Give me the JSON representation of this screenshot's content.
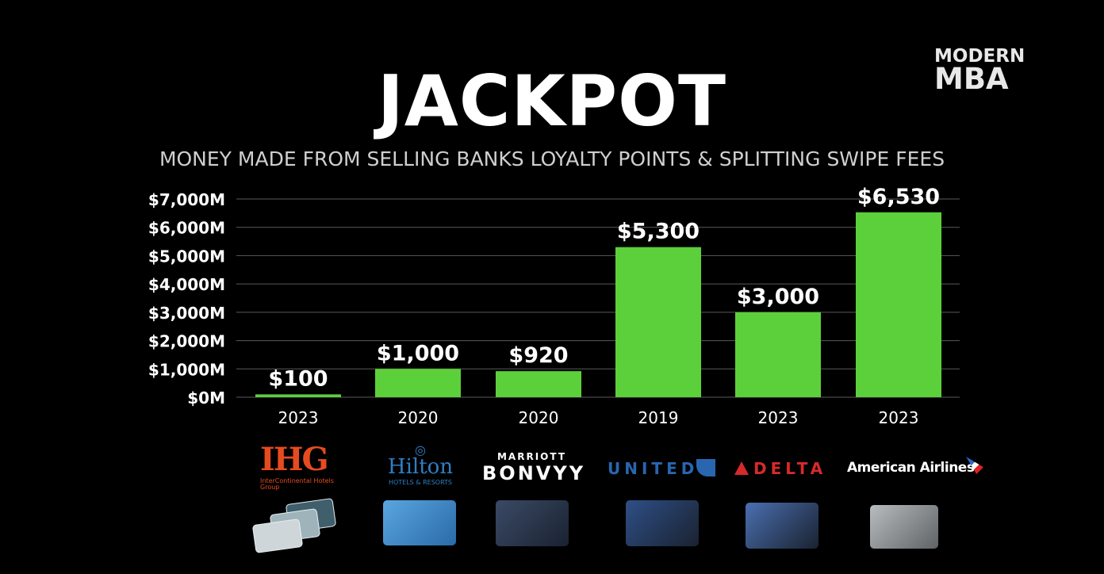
{
  "brand": {
    "line1": "MODERN",
    "line2": "MBA"
  },
  "chart_data": {
    "type": "bar",
    "title": "JACKPOT",
    "subtitle": "MONEY MADE FROM SELLING BANKS LOYALTY POINTS & SPLITTING SWIPE FEES",
    "categories": [
      "2023",
      "2020",
      "2020",
      "2019",
      "2023",
      "2023"
    ],
    "values": [
      100,
      1000,
      920,
      5300,
      3000,
      6530
    ],
    "data_labels": [
      "$100",
      "$1,000",
      "$920",
      "$5,300",
      "$3,000",
      "$6,530"
    ],
    "yticks": [
      0,
      1000,
      2000,
      3000,
      4000,
      5000,
      6000,
      7000
    ],
    "ytick_labels": [
      "$0M",
      "$1,000M",
      "$2,000M",
      "$3,000M",
      "$4,000M",
      "$5,000M",
      "$6,000M",
      "$7,000M"
    ],
    "ylim": [
      0,
      7000
    ],
    "grid": true,
    "bar_color": "#5cd03a",
    "xlabel": "",
    "ylabel": ""
  },
  "logos": [
    {
      "name": "ihg",
      "main": "IHG",
      "sub": "InterContinental Hotels Group",
      "color": "#e64b1f"
    },
    {
      "name": "hilton",
      "main": "Hilton",
      "sub": "HOTELS & RESORTS",
      "color": "#2f7fc4"
    },
    {
      "name": "marriott",
      "main": "BONVΥY",
      "sub": "MARRIOTT",
      "color": "#ffffff"
    },
    {
      "name": "united",
      "main": "UNITED",
      "color": "#2866b0"
    },
    {
      "name": "delta",
      "main": "DELTA",
      "color": "#d62a2a"
    },
    {
      "name": "american",
      "main": "American Airlines",
      "color": "#ffffff"
    }
  ],
  "cards": [
    {
      "name": "ihg-cards",
      "color": "#cfd6da"
    },
    {
      "name": "hilton-card",
      "color": "#3d86c6"
    },
    {
      "name": "marriott-card",
      "color": "#3a4a66"
    },
    {
      "name": "united-card",
      "color": "#2e4f86"
    },
    {
      "name": "delta-card",
      "color": "#4a6fb0"
    },
    {
      "name": "aadvantage-card",
      "color": "#8e9296"
    }
  ]
}
